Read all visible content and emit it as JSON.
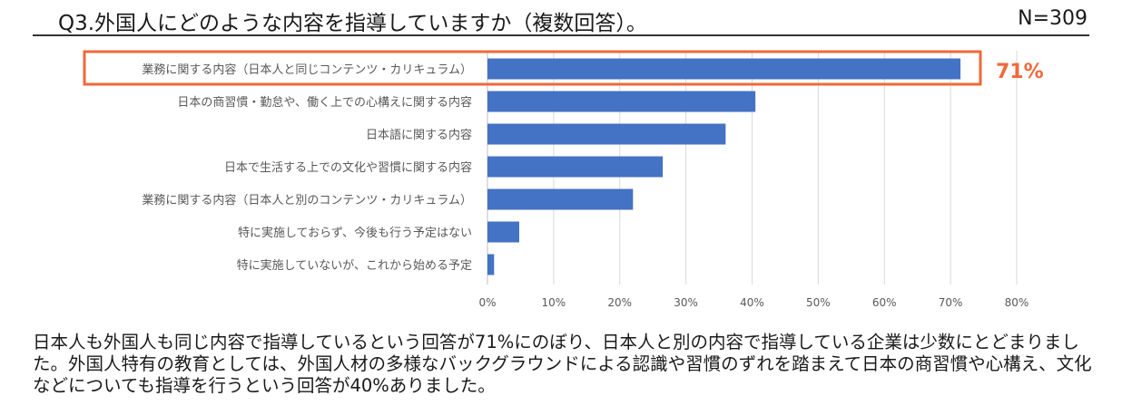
{
  "header": {
    "title": "Q3.外国人にどのような内容を指導していますか（複数回答）。",
    "n_label": "N=309"
  },
  "highlight": {
    "label": "71%",
    "color": "#f0683a"
  },
  "chart_data": {
    "type": "bar",
    "orientation": "horizontal",
    "categories": [
      "業務に関する内容（日本人と同じコンテンツ・カリキュラム）",
      "日本の商習慣・勤怠や、働く上での心構えに関する内容",
      "日本語に関する内容",
      "日本で生活する上での文化や習慣に関する内容",
      "業務に関する内容（日本人と別のコンテンツ・カリキュラム）",
      "特に実施しておらず、今後も行う予定はない",
      "特に実施していないが、これから始める予定"
    ],
    "values": [
      71.5,
      40.5,
      36,
      26.5,
      22,
      4.8,
      1
    ],
    "x_ticks": [
      "0%",
      "10%",
      "20%",
      "30%",
      "40%",
      "50%",
      "60%",
      "70%",
      "80%"
    ],
    "xlim": [
      0,
      80
    ],
    "bar_color": "#4472c4",
    "grid": true
  },
  "conclusion": "日本人も外国人も同じ内容で指導しているという回答が71%にのぼり、日本人と別の内容で指導している企業は少数にとどまりました。外国人特有の教育としては、外国人材の多様なバックグラウンドによる認識や習慣のずれを踏まえて日本の商習慣や心構え、文化などについても指導を行うという回答が40%ありました。"
}
